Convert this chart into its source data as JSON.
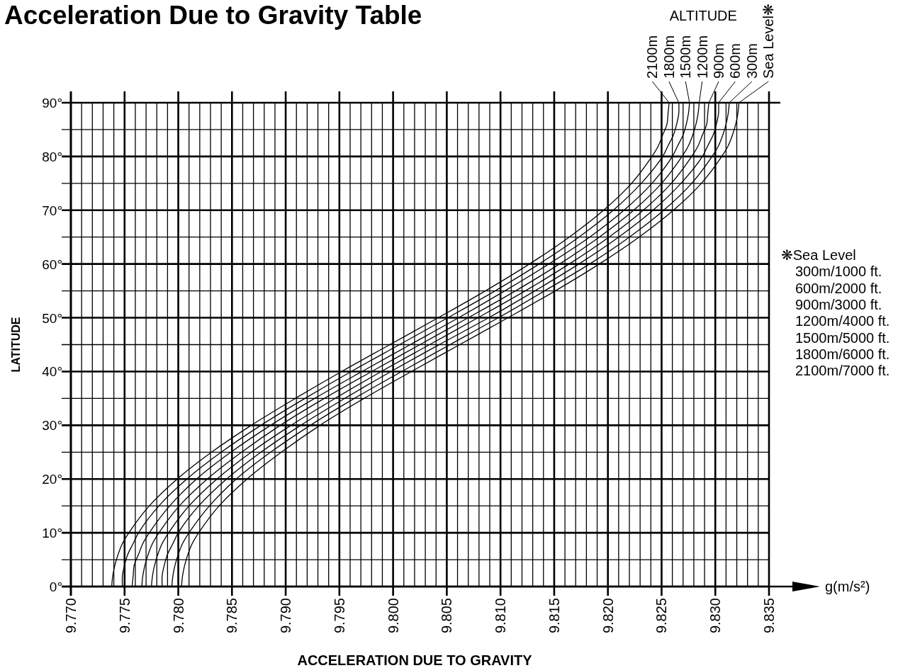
{
  "chart_data": {
    "type": "line",
    "title": "Acceleration Due to Gravity Table",
    "xlabel": "ACCELERATION DUE TO GRAVITY",
    "ylabel": "LATITUDE",
    "xlim": [
      9.77,
      9.835
    ],
    "ylim": [
      0,
      90
    ],
    "xticks": [
      {
        "value": 9.77,
        "label": "9.770"
      },
      {
        "value": 9.771,
        "label": null
      },
      {
        "value": 9.772,
        "label": null
      },
      {
        "value": 9.773,
        "label": null
      },
      {
        "value": 9.774,
        "label": null
      },
      9.775,
      {
        "value": 9.776,
        "label": null
      },
      {
        "value": 9.777,
        "label": null
      },
      {
        "value": 9.778,
        "label": null
      },
      {
        "value": 9.779,
        "label": null
      },
      {
        "value": 9.78,
        "label": "9.780"
      },
      {
        "value": 9.781,
        "label": null
      },
      {
        "value": 9.782,
        "label": null
      },
      {
        "value": 9.783,
        "label": null
      },
      {
        "value": 9.784,
        "label": null
      },
      9.785,
      {
        "value": 9.786,
        "label": null
      },
      {
        "value": 9.787,
        "label": null
      },
      {
        "value": 9.788,
        "label": null
      },
      {
        "value": 9.789,
        "label": null
      },
      {
        "value": 9.79,
        "label": "9.790"
      },
      {
        "value": 9.791,
        "label": null
      },
      {
        "value": 9.792,
        "label": null
      },
      {
        "value": 9.793,
        "label": null
      },
      {
        "value": 9.794,
        "label": null
      },
      9.795,
      {
        "value": 9.796,
        "label": null
      },
      {
        "value": 9.797,
        "label": null
      },
      {
        "value": 9.798,
        "label": null
      },
      {
        "value": 9.799,
        "label": null
      },
      {
        "value": 9.8,
        "label": "9.800"
      },
      {
        "value": 9.801,
        "label": null
      },
      {
        "value": 9.802,
        "label": null
      },
      {
        "value": 9.803,
        "label": null
      },
      {
        "value": 9.804,
        "label": null
      },
      9.805,
      {
        "value": 9.806,
        "label": null
      },
      {
        "value": 9.807,
        "label": null
      },
      {
        "value": 9.808,
        "label": null
      },
      {
        "value": 9.809,
        "label": null
      },
      {
        "value": 9.81,
        "label": "9.810"
      },
      {
        "value": 9.811,
        "label": null
      },
      {
        "value": 9.812,
        "label": null
      },
      {
        "value": 9.813,
        "label": null
      },
      {
        "value": 9.814,
        "label": null
      },
      9.815,
      {
        "value": 9.816,
        "label": null
      },
      {
        "value": 9.817,
        "label": null
      },
      {
        "value": 9.818,
        "label": null
      },
      {
        "value": 9.819,
        "label": null
      },
      {
        "value": 9.82,
        "label": "9.820"
      },
      {
        "value": 9.821,
        "label": null
      },
      {
        "value": 9.822,
        "label": null
      },
      {
        "value": 9.823,
        "label": null
      },
      {
        "value": 9.824,
        "label": null
      },
      9.825,
      {
        "value": 9.826,
        "label": null
      },
      {
        "value": 9.827,
        "label": null
      },
      {
        "value": 9.828,
        "label": null
      },
      {
        "value": 9.829,
        "label": null
      },
      {
        "value": 9.83,
        "label": "9.830"
      },
      {
        "value": 9.831,
        "label": null
      },
      {
        "value": 9.832,
        "label": null
      },
      {
        "value": 9.833,
        "label": null
      },
      {
        "value": 9.834,
        "label": null
      },
      9.835
    ],
    "yticks": [
      {
        "value": 0,
        "label": "0°"
      },
      {
        "value": 5,
        "label": null
      },
      {
        "value": 10,
        "label": "10°"
      },
      {
        "value": 15,
        "label": null
      },
      {
        "value": 20,
        "label": "20°"
      },
      {
        "value": 25,
        "label": null
      },
      {
        "value": 30,
        "label": "30°"
      },
      {
        "value": 35,
        "label": null
      },
      {
        "value": 40,
        "label": "40°"
      },
      {
        "value": 45,
        "label": null
      },
      {
        "value": 50,
        "label": "50°"
      },
      {
        "value": 55,
        "label": null
      },
      {
        "value": 60,
        "label": "60°"
      },
      {
        "value": 65,
        "label": null
      },
      {
        "value": 70,
        "label": "70°"
      },
      {
        "value": 75,
        "label": null
      },
      {
        "value": 80,
        "label": "80°"
      },
      {
        "value": 85,
        "label": null
      },
      {
        "value": 90,
        "label": "90°"
      }
    ],
    "grid": true,
    "series": [
      {
        "name": "Sea Level❋",
        "color": "#000000",
        "x": [
          9.7803,
          9.7804,
          9.7806,
          9.7809,
          9.7813,
          9.7819,
          9.7838,
          9.7864,
          9.7896,
          9.7932,
          9.7973,
          9.8017,
          9.8062,
          9.8107,
          9.8151,
          9.8192,
          9.8229,
          9.8261,
          9.8287,
          9.8306,
          9.8312,
          9.8316,
          9.8319,
          9.8321,
          9.8322
        ],
        "values": [
          0,
          2,
          4,
          6,
          8,
          10,
          15,
          20,
          25,
          30,
          35,
          40,
          45,
          50,
          55,
          60,
          65,
          70,
          75,
          80,
          82,
          84,
          86,
          88,
          90
        ]
      },
      {
        "name": "300m",
        "color": "#000000",
        "x": [
          9.7794,
          9.7795,
          9.7797,
          9.78,
          9.7804,
          9.781,
          9.7829,
          9.7854,
          9.7886,
          9.7923,
          9.7964,
          9.8008,
          9.8053,
          9.8098,
          9.8141,
          9.8183,
          9.822,
          9.8252,
          9.8278,
          9.8297,
          9.8303,
          9.8307,
          9.831,
          9.8312,
          9.8313
        ],
        "values": [
          0,
          2,
          4,
          6,
          8,
          10,
          15,
          20,
          25,
          30,
          35,
          40,
          45,
          50,
          55,
          60,
          65,
          70,
          75,
          80,
          82,
          84,
          86,
          88,
          90
        ]
      },
      {
        "name": "600m",
        "color": "#000000",
        "x": [
          9.7785,
          9.7785,
          9.7787,
          9.779,
          9.7795,
          9.78,
          9.7819,
          9.7845,
          9.7877,
          9.7914,
          9.7955,
          9.7998,
          9.8043,
          9.8089,
          9.8132,
          9.8173,
          9.821,
          9.8242,
          9.8268,
          9.8288,
          9.8293,
          9.8298,
          9.8301,
          9.8303,
          9.8303
        ],
        "values": [
          0,
          2,
          4,
          6,
          8,
          10,
          15,
          20,
          25,
          30,
          35,
          40,
          45,
          50,
          55,
          60,
          65,
          70,
          75,
          80,
          82,
          84,
          86,
          88,
          90
        ]
      },
      {
        "name": "900m",
        "color": "#000000",
        "x": [
          9.7775,
          9.7776,
          9.7778,
          9.7781,
          9.7785,
          9.7791,
          9.781,
          9.7836,
          9.7868,
          9.7905,
          9.7946,
          9.7989,
          9.8034,
          9.8079,
          9.8123,
          9.8164,
          9.8201,
          9.8233,
          9.8259,
          9.8278,
          9.8284,
          9.8288,
          9.8292,
          9.8293,
          9.8294
        ],
        "values": [
          0,
          2,
          4,
          6,
          8,
          10,
          15,
          20,
          25,
          30,
          35,
          40,
          45,
          50,
          55,
          60,
          65,
          70,
          75,
          80,
          82,
          84,
          86,
          88,
          90
        ]
      },
      {
        "name": "1200m",
        "color": "#000000",
        "x": [
          9.7766,
          9.7767,
          9.7769,
          9.7772,
          9.7776,
          9.7782,
          9.7801,
          9.7827,
          9.7859,
          9.7895,
          9.7936,
          9.798,
          9.8025,
          9.807,
          9.8114,
          9.8155,
          9.8192,
          9.8224,
          9.825,
          9.8269,
          9.8275,
          9.8279,
          9.8282,
          9.8284,
          9.8285
        ],
        "values": [
          0,
          2,
          4,
          6,
          8,
          10,
          15,
          20,
          25,
          30,
          35,
          40,
          45,
          50,
          55,
          60,
          65,
          70,
          75,
          80,
          82,
          84,
          86,
          88,
          90
        ]
      },
      {
        "name": "1500m",
        "color": "#000000",
        "x": [
          9.7757,
          9.7758,
          9.7759,
          9.7763,
          9.7767,
          9.7773,
          9.7792,
          9.7817,
          9.7849,
          9.7886,
          9.7927,
          9.7971,
          9.8016,
          9.8061,
          9.8104,
          9.8145,
          9.8183,
          9.8215,
          9.8241,
          9.826,
          9.8265,
          9.827,
          9.8273,
          9.8275,
          9.8276
        ],
        "values": [
          0,
          2,
          4,
          6,
          8,
          10,
          15,
          20,
          25,
          30,
          35,
          40,
          45,
          50,
          55,
          60,
          65,
          70,
          75,
          80,
          82,
          84,
          86,
          88,
          90
        ]
      },
      {
        "name": "1800m",
        "color": "#000000",
        "x": [
          9.7748,
          9.7748,
          9.775,
          9.7753,
          9.7758,
          9.7763,
          9.7782,
          9.7808,
          9.784,
          9.7877,
          9.7918,
          9.7961,
          9.8006,
          9.8051,
          9.8095,
          9.8136,
          9.8173,
          9.8205,
          9.8231,
          9.8251,
          9.8256,
          9.8261,
          9.8264,
          9.8266,
          9.8266
        ],
        "values": [
          0,
          2,
          4,
          6,
          8,
          10,
          15,
          20,
          25,
          30,
          35,
          40,
          45,
          50,
          55,
          60,
          65,
          70,
          75,
          80,
          82,
          84,
          86,
          88,
          90
        ]
      },
      {
        "name": "2100m",
        "color": "#000000",
        "x": [
          9.7738,
          9.7739,
          9.7741,
          9.7744,
          9.7748,
          9.7754,
          9.7773,
          9.7799,
          9.7831,
          9.7868,
          9.7909,
          9.7952,
          9.7997,
          9.8042,
          9.8086,
          9.8127,
          9.8164,
          9.8196,
          9.8222,
          9.8241,
          9.8247,
          9.8251,
          9.8255,
          9.8256,
          9.8257
        ],
        "values": [
          0,
          2,
          4,
          6,
          8,
          10,
          15,
          20,
          25,
          30,
          35,
          40,
          45,
          50,
          55,
          60,
          65,
          70,
          75,
          80,
          82,
          84,
          86,
          88,
          90
        ]
      }
    ],
    "annotations": [
      "ALTITUDE",
      "g(m/s²)",
      "❋Sea Level",
      "300m/1000 ft.",
      "600m/2000 ft.",
      "900m/3000 ft.",
      "1200m/4000 ft.",
      "1500m/5000 ft.",
      "1800m/6000 ft.",
      "2100m/7000 ft."
    ]
  }
}
